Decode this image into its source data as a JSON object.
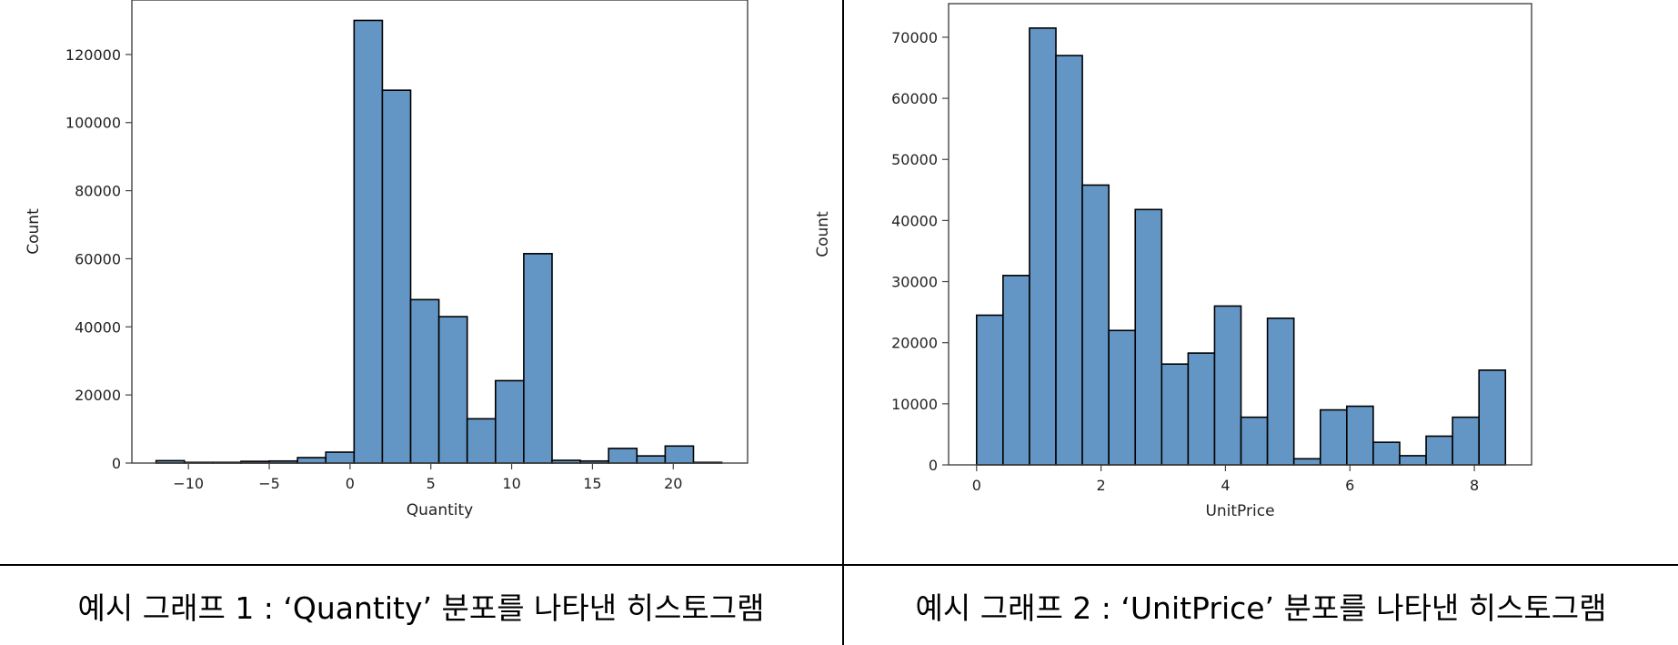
{
  "captions": {
    "left": "예시 그래프 1 : ‘Quantity’ 분포를 나타낸 히스토그램",
    "right": "예시 그래프 2 : ‘UnitPrice’ 분포를 나타낸 히스토그램"
  },
  "chart_data": [
    {
      "type": "bar",
      "xlabel": "Quantity",
      "ylabel": "Count",
      "xlim": [
        -13.5,
        24.6
      ],
      "ylim": [
        0,
        136000
      ],
      "xticks": [
        -10,
        -5,
        0,
        5,
        10,
        15,
        20
      ],
      "yticks": [
        0,
        20000,
        40000,
        60000,
        80000,
        100000,
        120000
      ],
      "bin_width": 1.75,
      "bins": [
        {
          "x0": -12.0,
          "count": 700
        },
        {
          "x0": -10.25,
          "count": 200
        },
        {
          "x0": -8.5,
          "count": 200
        },
        {
          "x0": -6.75,
          "count": 500
        },
        {
          "x0": -5.0,
          "count": 600
        },
        {
          "x0": -3.25,
          "count": 1600
        },
        {
          "x0": -1.5,
          "count": 3200
        },
        {
          "x0": 0.25,
          "count": 130000
        },
        {
          "x0": 2.0,
          "count": 109500
        },
        {
          "x0": 3.75,
          "count": 48000
        },
        {
          "x0": 5.5,
          "count": 43000
        },
        {
          "x0": 7.25,
          "count": 13000
        },
        {
          "x0": 9.0,
          "count": 24200
        },
        {
          "x0": 10.75,
          "count": 61500
        },
        {
          "x0": 12.5,
          "count": 800
        },
        {
          "x0": 14.25,
          "count": 600
        },
        {
          "x0": 16.0,
          "count": 4300
        },
        {
          "x0": 17.75,
          "count": 2100
        },
        {
          "x0": 19.5,
          "count": 5000
        },
        {
          "x0": 21.25,
          "count": 200
        }
      ],
      "bar_color": "#6396c5",
      "edge_color": "#000000"
    },
    {
      "type": "bar",
      "xlabel": "UnitPrice",
      "ylabel": "Count",
      "xlim": [
        -0.45,
        8.92
      ],
      "ylim": [
        0,
        75500
      ],
      "xticks": [
        0,
        2,
        4,
        6,
        8
      ],
      "yticks": [
        0,
        10000,
        20000,
        30000,
        40000,
        50000,
        60000,
        70000
      ],
      "bin_width": 0.425,
      "bins": [
        {
          "x0": 0.0,
          "count": 24500
        },
        {
          "x0": 0.425,
          "count": 31000
        },
        {
          "x0": 0.85,
          "count": 71500
        },
        {
          "x0": 1.275,
          "count": 67000
        },
        {
          "x0": 1.7,
          "count": 45800
        },
        {
          "x0": 2.125,
          "count": 22000
        },
        {
          "x0": 2.55,
          "count": 41800
        },
        {
          "x0": 2.975,
          "count": 16500
        },
        {
          "x0": 3.4,
          "count": 18300
        },
        {
          "x0": 3.825,
          "count": 26000
        },
        {
          "x0": 4.25,
          "count": 7800
        },
        {
          "x0": 4.675,
          "count": 24000
        },
        {
          "x0": 5.1,
          "count": 1000
        },
        {
          "x0": 5.525,
          "count": 9000
        },
        {
          "x0": 5.95,
          "count": 9600
        },
        {
          "x0": 6.375,
          "count": 3700
        },
        {
          "x0": 6.8,
          "count": 1500
        },
        {
          "x0": 7.225,
          "count": 4700
        },
        {
          "x0": 7.65,
          "count": 7800
        },
        {
          "x0": 8.075,
          "count": 15500
        }
      ],
      "bar_color": "#6396c5",
      "edge_color": "#000000"
    }
  ]
}
